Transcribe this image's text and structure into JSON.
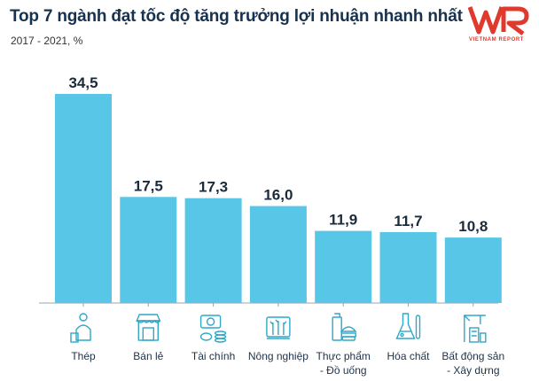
{
  "header": {
    "title": "Top 7 ngành đạt tốc độ tăng trưởng lợi nhuận nhanh nhất",
    "subtitle": "2017 - 2021, %"
  },
  "logo": {
    "mark": "VNR",
    "text": "VIETNAM REPORT",
    "color": "#e03a2e"
  },
  "colors": {
    "bar": "#58c6e6",
    "axis": "#9aa7b0",
    "icon": "#2ea7c9"
  },
  "chart_data": {
    "type": "bar",
    "title": "Top 7 ngành đạt tốc độ tăng trưởng lợi nhuận nhanh nhất",
    "subtitle": "2017 - 2021, %",
    "xlabel": "",
    "ylabel": "",
    "ylim": [
      0,
      34.5
    ],
    "grid": false,
    "categories": [
      [
        "Thép"
      ],
      [
        "Bán lẻ"
      ],
      [
        "Tài chính"
      ],
      [
        "Nông nghiệp"
      ],
      [
        "Thực phẩm",
        "- Đồ uống"
      ],
      [
        "Hóa chất"
      ],
      [
        "Bất động sản",
        "- Xây dựng"
      ]
    ],
    "values": [
      34.5,
      17.5,
      17.3,
      16.0,
      11.9,
      11.7,
      10.8
    ],
    "value_labels": [
      "34,5",
      "17,5",
      "17,3",
      "16,0",
      "11,9",
      "11,7",
      "10,8"
    ],
    "icons": [
      "steel-worker-icon",
      "store-icon",
      "money-icon",
      "agriculture-icon",
      "food-drink-icon",
      "chemistry-flask-icon",
      "construction-crane-icon"
    ]
  }
}
